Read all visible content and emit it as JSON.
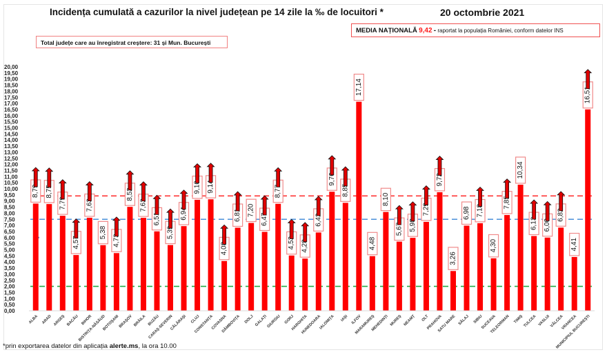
{
  "header": {
    "title": "Incidența cumulată a cazurilor la nivel județean pe 14 zile la ‰ de locuitori *",
    "date": "20 octombrie 2021",
    "total_box": "Total județe care au înregistrat creștere:  31 și Mun. București",
    "media_label": "MEDIA NAȚIONALĂ",
    "media_value": "9,42",
    "media_dash": "-",
    "media_note": "raportat la populația României, conform datelor INS"
  },
  "footnote": {
    "prefix": "*prin exportarea datelor din aplicația ",
    "bold": "alerte.ms",
    "suffix": ", la ora 10.00"
  },
  "colors": {
    "bar": "#ff0000",
    "label_border": "#f08a8a",
    "national_avg_line": "#ff3333",
    "blue_line": "#4a90d9",
    "green_line": "#22aa44",
    "arrow_fill": "#e00000",
    "arrow_stroke": "#111111"
  },
  "chart_data": {
    "type": "bar",
    "title": "Incidența cumulată a cazurilor la nivel județean pe 14 zile la ‰ de locuitori *",
    "xlabel": "",
    "ylabel": "",
    "ylim": [
      0,
      20
    ],
    "ytick_step": 0.5,
    "yticks": [
      "0,00",
      "0,50",
      "1,00",
      "1,50",
      "2,00",
      "2,50",
      "3,00",
      "3,50",
      "4,00",
      "4,50",
      "5,00",
      "5,50",
      "6,00",
      "6,50",
      "7,00",
      "7,50",
      "8,00",
      "8,50",
      "9,00",
      "9,50",
      "10,00",
      "10,50",
      "11,00",
      "11,50",
      "12,00",
      "12,50",
      "13,00",
      "13,50",
      "14,00",
      "14,50",
      "15,00",
      "15,50",
      "16,00",
      "16,50",
      "17,00",
      "17,50",
      "18,00",
      "18,50",
      "19,00",
      "19,50",
      "20,00"
    ],
    "grid": false,
    "legend": "none",
    "reference_lines": [
      {
        "name": "media-nationala",
        "value": 9.42,
        "color": "#ff3333",
        "style": "dashed"
      },
      {
        "name": "threshold-7-5",
        "value": 7.5,
        "color": "#4a90d9",
        "style": "dashed"
      },
      {
        "name": "threshold-2",
        "value": 2.0,
        "color": "#22aa44",
        "style": "dashed"
      }
    ],
    "categories": [
      "ALBA",
      "ARAD",
      "ARGEȘ",
      "BACĂU",
      "BIHOR",
      "BISTRIȚA-NĂSĂUD",
      "BOTOȘANI",
      "BRAȘOV",
      "BRĂILA",
      "BUZĂU",
      "CARAȘ-SEVERIN",
      "CĂLĂRAȘI",
      "CLUJ",
      "CONSTANȚA",
      "COVASNA",
      "DÂMBOVIȚA",
      "DOLJ",
      "GALAȚI",
      "GIURGIU",
      "GORJ",
      "HARGHITA",
      "HUNEDOARA",
      "IALOMIȚA",
      "IAȘI",
      "ILFOV",
      "MARAMUREȘ",
      "MEHEDINȚI",
      "MUREȘ",
      "NEAMȚ",
      "OLT",
      "PRAHOVA",
      "SATU MARE",
      "SĂLAJ",
      "SIBIU",
      "SUCEAVA",
      "TELEORMAN",
      "TIMIȘ",
      "TULCEA",
      "VASLUI",
      "VÂLCEA",
      "VRANCEA",
      "MUNICIPIUL BUCUREȘTI"
    ],
    "values": [
      8.79,
      8.75,
      7.79,
      4.57,
      7.63,
      5.38,
      4.73,
      8.52,
      7.62,
      6.51,
      5.39,
      6.94,
      9.1,
      9.14,
      4.08,
      6.81,
      7.2,
      6.47,
      8.77,
      4.53,
      4.28,
      6.42,
      9.76,
      8.85,
      17.14,
      4.48,
      8.1,
      5.67,
      5.98,
      7.29,
      9.72,
      3.26,
      6.98,
      7.18,
      4.3,
      7.85,
      10.34,
      6.13,
      6.0,
      6.82,
      4.41,
      16.51
    ],
    "value_labels": [
      "8,79",
      "8,75",
      "7,79",
      "4,57",
      "7,63",
      "5,38",
      "4,73",
      "8,52",
      "7,62",
      "6,51",
      "5,39",
      "6,94",
      "9,10",
      "9,14",
      "4,08",
      "6,81",
      "7,20",
      "6,47",
      "8,77",
      "4,53",
      "4,28",
      "6,42",
      "9,76",
      "8,85",
      "17,14",
      "4,48",
      "8,10",
      "5,67",
      "5,98",
      "7,29",
      "9,72",
      "3,26",
      "6,98",
      "7,18",
      "4,30",
      "7,85",
      "10,34",
      "6,13",
      "6,00",
      "6,82",
      "4,41",
      "16,51"
    ],
    "increase": [
      true,
      true,
      true,
      true,
      true,
      false,
      true,
      true,
      true,
      true,
      true,
      true,
      true,
      true,
      true,
      true,
      false,
      true,
      true,
      true,
      true,
      true,
      true,
      true,
      false,
      false,
      false,
      true,
      true,
      true,
      true,
      false,
      false,
      true,
      false,
      true,
      false,
      true,
      true,
      true,
      false,
      true
    ]
  }
}
